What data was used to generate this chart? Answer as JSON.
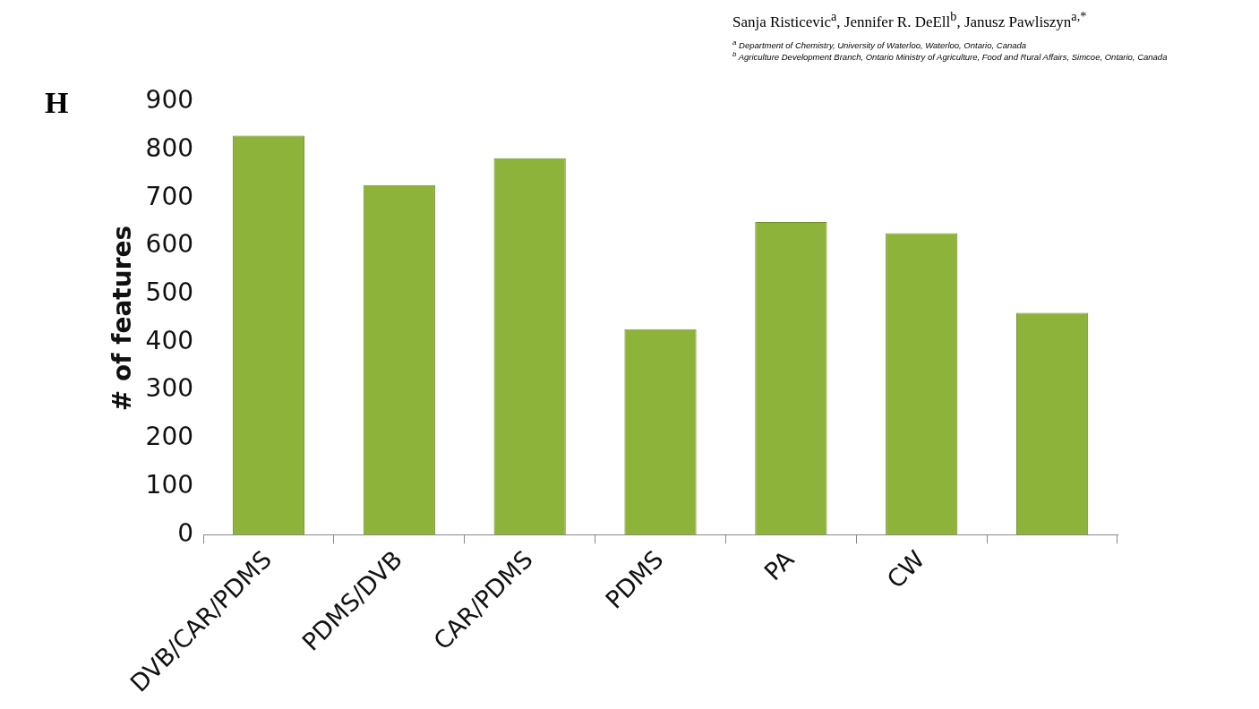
{
  "chart_data": {
    "type": "bar",
    "ylabel": "# of features",
    "categories": [
      "DVB/CAR/PDMS",
      "PDMS/DVB",
      "CAR/PDMS",
      "PDMS",
      "PA",
      "CW",
      null
    ],
    "values": [
      830,
      727,
      783,
      427,
      650,
      627,
      461
    ],
    "color": "#8db33a",
    "ylim": [
      0,
      900
    ],
    "yticks": [
      0,
      100,
      200,
      300,
      400,
      500,
      600,
      700,
      800,
      900
    ],
    "grid": false,
    "legend": false,
    "annotations": [
      "H",
      "Sanja Risticevic$^{a}$, Jennifer R. DeEll$^{b}$, Janusz Pawliszyn$^{a,*}$",
      "$^{a}$ Department of Chemistry, University of Waterloo, Waterloo, Ontario, Canada",
      "$^{b}$ Agriculture Development Branch, Ontario Ministry of Agriculture, Food and Rural Affairs, Simcoe, Ontario, Canada"
    ]
  }
}
